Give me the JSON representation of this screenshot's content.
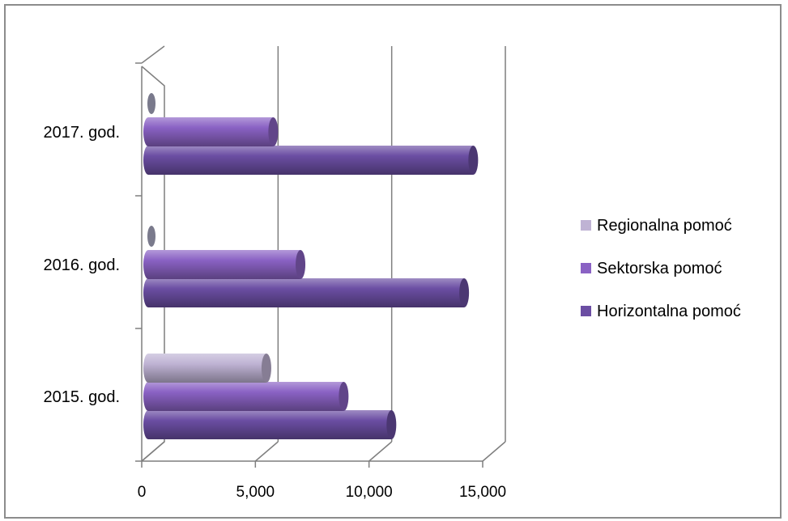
{
  "chart_data": {
    "type": "bar",
    "orientation": "horizontal",
    "style": "3d-cylinder",
    "categories": [
      "2015. god.",
      "2016. god.",
      "2017. god."
    ],
    "series": [
      {
        "name": "Horizontalna pomoć",
        "color": "#6b4ea3",
        "values": [
          10700,
          13900,
          14300
        ]
      },
      {
        "name": "Sektorska pomoć",
        "color": "#8a62c4",
        "values": [
          8600,
          6700,
          5500
        ]
      },
      {
        "name": "Regionalna pomoć",
        "color": "#bfb3d4",
        "values": [
          5200,
          0,
          0
        ]
      }
    ],
    "legend_order": [
      "Regionalna pomoć",
      "Sektorska pomoć",
      "Horizontalna pomoć"
    ],
    "xlim": [
      0,
      15000
    ],
    "xticks": [
      0,
      5000,
      10000,
      15000
    ],
    "xtick_labels": [
      "0",
      "5,000",
      "10,000",
      "15,000"
    ],
    "grid": true,
    "legend_position": "right"
  }
}
